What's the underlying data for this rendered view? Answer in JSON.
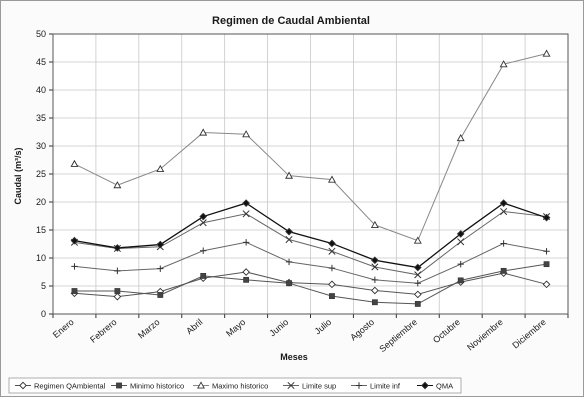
{
  "chart_data": {
    "type": "line",
    "title": "Regimen de Caudal Ambiental",
    "xlabel": "Meses",
    "ylabel": "Caudal (m³/s)",
    "ylim": [
      0,
      50
    ],
    "yticks": [
      0,
      5,
      10,
      15,
      20,
      25,
      30,
      35,
      40,
      45,
      50
    ],
    "grid": true,
    "legend_position": "bottom",
    "categories": [
      "Enero",
      "Febrero",
      "Marzo",
      "Abril",
      "Mayo",
      "Junio",
      "Julio",
      "Agosto",
      "Septiembre",
      "Octubre",
      "Noviembre",
      "Diciembre"
    ],
    "series": [
      {
        "name": "Regimen QAmbiental",
        "marker": "diamond-open",
        "values": [
          3.7,
          3.1,
          4.0,
          6.4,
          7.5,
          5.6,
          5.3,
          4.2,
          3.5,
          5.7,
          7.3,
          5.3
        ]
      },
      {
        "name": "Minimo historico",
        "marker": "square",
        "values": [
          4.1,
          4.1,
          3.4,
          6.8,
          6.1,
          5.5,
          3.2,
          2.1,
          1.8,
          6.0,
          7.7,
          8.9
        ]
      },
      {
        "name": "Maximo historico",
        "marker": "triangle",
        "values": [
          26.8,
          23.0,
          25.9,
          32.4,
          32.1,
          24.7,
          24.0,
          15.9,
          13.1,
          31.4,
          44.6,
          46.5
        ]
      },
      {
        "name": "Limite sup",
        "marker": "x",
        "values": [
          12.8,
          11.7,
          12.0,
          16.3,
          17.9,
          13.3,
          11.2,
          8.4,
          7.0,
          12.9,
          18.3,
          17.4
        ]
      },
      {
        "name": "Limite inf",
        "marker": "cross",
        "values": [
          8.5,
          7.7,
          8.1,
          11.3,
          12.8,
          9.3,
          8.2,
          6.1,
          5.5,
          8.9,
          12.6,
          11.2
        ]
      },
      {
        "name": "QMA",
        "marker": "diamond",
        "values": [
          13.1,
          11.8,
          12.4,
          17.4,
          19.8,
          14.7,
          12.6,
          9.6,
          8.3,
          14.3,
          19.8,
          17.2
        ]
      }
    ]
  }
}
